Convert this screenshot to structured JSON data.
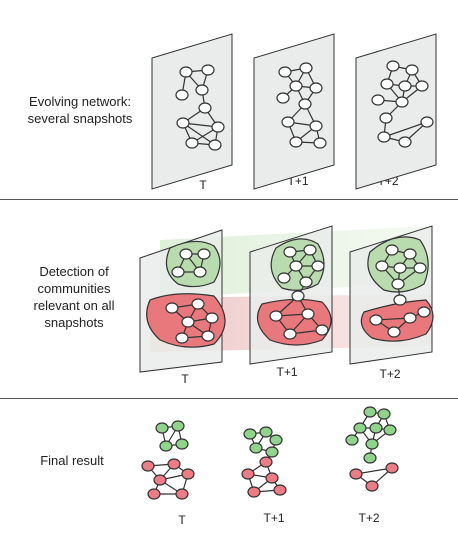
{
  "rows": [
    {
      "label_line1": "Evolving network:",
      "label_line2": "several snapshots"
    },
    {
      "label_line1": "Detection of",
      "label_line2": "communities",
      "label_line3": "relevant on all",
      "label_line4": "snapshots"
    },
    {
      "label_line1": "Final result"
    }
  ],
  "snapshots": [
    "T",
    "T+1",
    "T+2"
  ],
  "colors": {
    "panel_fill": "#e9ecea",
    "panel_stroke": "#333333",
    "node_fill": "#ffffff",
    "green_community": "#b9dcae",
    "red_community": "#e9787c",
    "green_node": "#8fd48a",
    "red_node": "#ef7b84",
    "divider": "#555555"
  }
}
